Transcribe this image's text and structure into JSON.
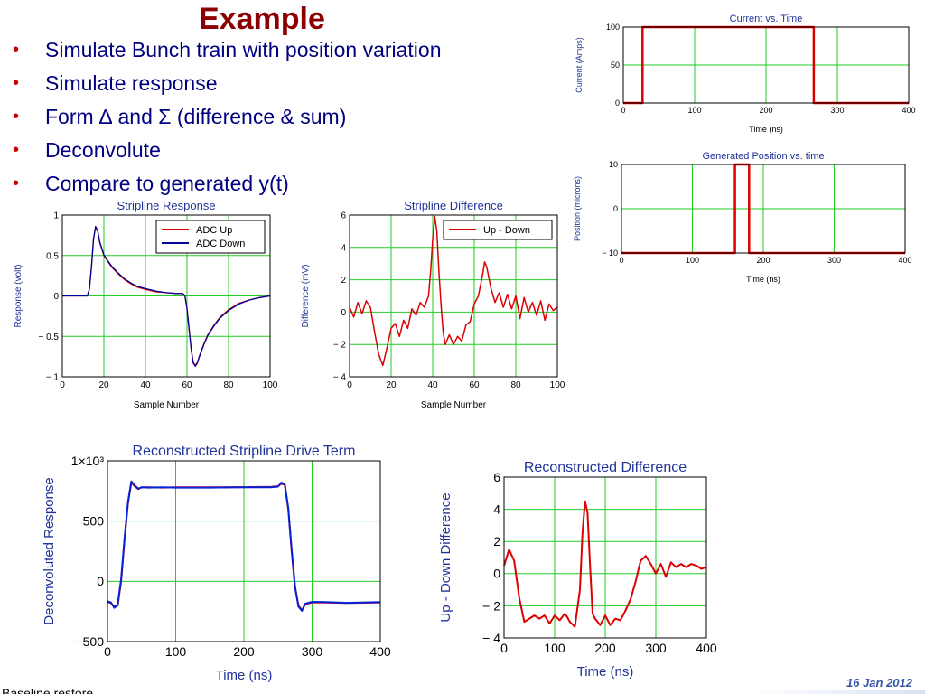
{
  "slide": {
    "title": "Example",
    "bullet_glyph": "•",
    "bullets": [
      "Simulate Bunch train with position variation",
      "Simulate response",
      "Form ∆ and Σ (difference & sum)",
      "Deconvolute",
      "Compare to generated y(t)"
    ],
    "footer_date": "16 Jan 2012",
    "footer_text": "Baseline restore"
  },
  "chart_data": [
    {
      "id": "current",
      "type": "line",
      "title": "Current vs. Time",
      "xlabel": "Time (ns)",
      "ylabel": "Current (Amps)",
      "xlim": [
        0,
        400
      ],
      "ylim": [
        0,
        100
      ],
      "xticks": [
        0,
        100,
        200,
        300,
        400
      ],
      "yticks": [
        0,
        50,
        100
      ],
      "grid": true,
      "series": [
        {
          "color": "#dd0000",
          "x": [
            0,
            27,
            27,
            267,
            267,
            400
          ],
          "y": [
            0,
            0,
            100,
            100,
            0,
            0
          ]
        }
      ]
    },
    {
      "id": "position",
      "type": "line",
      "title": "Generated Position vs. time",
      "xlabel": "Time (ns)",
      "ylabel": "Position (microns)",
      "xlim": [
        0,
        400
      ],
      "ylim": [
        -10,
        10
      ],
      "xticks": [
        0,
        100,
        200,
        300,
        400
      ],
      "yticks": [
        -10,
        0,
        10
      ],
      "ytick_labels": [
        "− 10",
        "0",
        "10"
      ],
      "grid": true,
      "series": [
        {
          "color": "#dd0000",
          "x": [
            0,
            160,
            160,
            180,
            180,
            400
          ],
          "y": [
            -10,
            -10,
            10,
            10,
            -10,
            -10
          ]
        }
      ]
    },
    {
      "id": "stripline-response",
      "type": "line",
      "title": "Stripline Response",
      "xlabel": "Sample Number",
      "ylabel": "Response (volt)",
      "xlim": [
        0,
        100
      ],
      "ylim": [
        -1,
        1
      ],
      "xticks": [
        0,
        20,
        40,
        60,
        80,
        100
      ],
      "yticks": [
        -1,
        -0.5,
        0,
        0.5,
        1
      ],
      "ytick_labels": [
        "− 1",
        "− 0.5",
        "0",
        "0.5",
        "1"
      ],
      "grid": true,
      "legend": "top-right",
      "series": [
        {
          "name": "ADC Up",
          "color": "#dd0000",
          "x": [
            0,
            12,
            13,
            14,
            15,
            16,
            17,
            18,
            20,
            22,
            24,
            27,
            30,
            33,
            36,
            40,
            45,
            50,
            55,
            58,
            59,
            60,
            61,
            62,
            63,
            64,
            65,
            66,
            68,
            70,
            73,
            76,
            80,
            85,
            90,
            95,
            100
          ],
          "y": [
            0,
            0,
            0.08,
            0.35,
            0.7,
            0.85,
            0.8,
            0.66,
            0.5,
            0.42,
            0.35,
            0.27,
            0.2,
            0.15,
            0.11,
            0.08,
            0.05,
            0.04,
            0.03,
            0.03,
            0,
            -0.15,
            -0.4,
            -0.65,
            -0.82,
            -0.86,
            -0.82,
            -0.74,
            -0.6,
            -0.48,
            -0.36,
            -0.26,
            -0.17,
            -0.09,
            -0.05,
            -0.02,
            0
          ]
        },
        {
          "name": "ADC Down",
          "color": "#000099",
          "x": [
            0,
            12,
            13,
            14,
            15,
            16,
            17,
            18,
            20,
            22,
            24,
            27,
            30,
            33,
            36,
            40,
            45,
            50,
            55,
            58,
            59,
            60,
            61,
            62,
            63,
            64,
            65,
            66,
            68,
            70,
            73,
            76,
            80,
            85,
            90,
            95,
            100
          ],
          "y": [
            0,
            0,
            0.08,
            0.35,
            0.7,
            0.86,
            0.81,
            0.67,
            0.51,
            0.43,
            0.36,
            0.28,
            0.21,
            0.16,
            0.12,
            0.09,
            0.06,
            0.04,
            0.03,
            0.03,
            0,
            -0.16,
            -0.41,
            -0.66,
            -0.83,
            -0.87,
            -0.83,
            -0.75,
            -0.61,
            -0.49,
            -0.37,
            -0.27,
            -0.18,
            -0.1,
            -0.05,
            -0.02,
            0
          ]
        }
      ]
    },
    {
      "id": "stripline-difference",
      "type": "line",
      "title": "Stripline  Difference",
      "xlabel": "Sample Number",
      "ylabel": "Difference (mV)",
      "xlim": [
        0,
        100
      ],
      "ylim": [
        -4,
        6
      ],
      "xticks": [
        0,
        20,
        40,
        60,
        80,
        100
      ],
      "yticks": [
        -4,
        -2,
        0,
        2,
        4,
        6
      ],
      "ytick_labels": [
        "− 4",
        "− 2",
        "0",
        "2",
        "4",
        "6"
      ],
      "grid": true,
      "legend": "top-right",
      "series": [
        {
          "name": "Up - Down",
          "color": "#dd0000",
          "x": [
            0,
            2,
            4,
            6,
            8,
            10,
            12,
            14,
            16,
            18,
            20,
            22,
            24,
            26,
            28,
            30,
            32,
            34,
            36,
            38,
            39,
            40,
            41,
            42,
            43,
            44,
            45,
            46,
            48,
            50,
            52,
            54,
            56,
            58,
            60,
            62,
            64,
            65,
            66,
            68,
            70,
            72,
            74,
            76,
            78,
            80,
            82,
            84,
            86,
            88,
            90,
            92,
            94,
            96,
            98,
            100
          ],
          "y": [
            0.3,
            -0.3,
            0.6,
            -0.1,
            0.7,
            0.3,
            -1.2,
            -2.6,
            -3.3,
            -2.2,
            -1.0,
            -0.7,
            -1.5,
            -0.5,
            -1.0,
            0.2,
            -0.2,
            0.6,
            0.3,
            1.0,
            2.5,
            4.5,
            5.9,
            5.0,
            2.5,
            0.5,
            -1.2,
            -2.0,
            -1.4,
            -2.0,
            -1.5,
            -1.8,
            -0.8,
            -0.6,
            0.5,
            1.0,
            2.3,
            3.1,
            2.8,
            1.5,
            0.6,
            1.2,
            0.3,
            1.1,
            0.2,
            1.0,
            -0.4,
            0.9,
            0.0,
            0.6,
            -0.2,
            0.7,
            -0.5,
            0.5,
            0.1,
            0.3
          ]
        }
      ]
    },
    {
      "id": "reconstructed-drive",
      "type": "line",
      "title": "Reconstructed Stripline Drive Term",
      "xlabel": "Time (ns)",
      "ylabel": "Deconvoluted Response",
      "xlim": [
        0,
        400
      ],
      "ylim": [
        -500,
        1000
      ],
      "xticks": [
        0,
        100,
        200,
        300,
        400
      ],
      "yticks": [
        -500,
        0,
        500,
        1000
      ],
      "ytick_labels": [
        "− 500",
        "0",
        "500",
        "1×10³"
      ],
      "grid": true,
      "series": [
        {
          "color": "#dd0000",
          "x": [
            0,
            5,
            10,
            15,
            20,
            25,
            30,
            35,
            40,
            45,
            50,
            60,
            80,
            100,
            150,
            200,
            240,
            250,
            255,
            260,
            265,
            270,
            275,
            280,
            285,
            290,
            300,
            320,
            350,
            400
          ],
          "y": [
            -170,
            -180,
            -210,
            -200,
            0,
            350,
            650,
            820,
            790,
            765,
            780,
            780,
            778,
            780,
            780,
            782,
            785,
            790,
            810,
            800,
            600,
            250,
            -50,
            -200,
            -240,
            -190,
            -175,
            -175,
            -180,
            -175
          ]
        },
        {
          "color": "#0022dd",
          "x": [
            0,
            5,
            10,
            15,
            20,
            25,
            30,
            35,
            40,
            45,
            50,
            60,
            80,
            100,
            150,
            200,
            240,
            250,
            255,
            260,
            265,
            270,
            275,
            280,
            285,
            290,
            300,
            320,
            350,
            400
          ],
          "y": [
            -165,
            -175,
            -220,
            -195,
            20,
            360,
            660,
            830,
            795,
            770,
            780,
            778,
            780,
            778,
            778,
            780,
            780,
            786,
            820,
            805,
            610,
            260,
            -40,
            -210,
            -245,
            -185,
            -170,
            -172,
            -178,
            -172
          ]
        }
      ]
    },
    {
      "id": "reconstructed-difference",
      "type": "line",
      "title": "Reconstructed Difference",
      "xlabel": "Time (ns)",
      "ylabel": "Up - Down Difference",
      "xlim": [
        0,
        400
      ],
      "ylim": [
        -4,
        6
      ],
      "xticks": [
        0,
        100,
        200,
        300,
        400
      ],
      "yticks": [
        -4,
        -2,
        0,
        2,
        4,
        6
      ],
      "ytick_labels": [
        "− 4",
        "− 2",
        "0",
        "2",
        "4",
        "6"
      ],
      "grid": true,
      "series": [
        {
          "color": "#dd0000",
          "x": [
            0,
            10,
            20,
            30,
            40,
            50,
            60,
            70,
            80,
            90,
            100,
            110,
            120,
            125,
            130,
            140,
            150,
            155,
            160,
            165,
            170,
            175,
            180,
            190,
            200,
            210,
            220,
            230,
            240,
            250,
            260,
            270,
            280,
            290,
            300,
            310,
            320,
            330,
            340,
            350,
            360,
            370,
            380,
            390,
            400
          ],
          "y": [
            0.5,
            1.5,
            0.8,
            -1.5,
            -3.0,
            -2.8,
            -2.6,
            -2.8,
            -2.6,
            -3.1,
            -2.6,
            -2.9,
            -2.5,
            -2.7,
            -3.0,
            -3.3,
            -1.0,
            2.5,
            4.5,
            3.8,
            0.5,
            -2.5,
            -2.8,
            -3.2,
            -2.6,
            -3.2,
            -2.8,
            -2.9,
            -2.3,
            -1.6,
            -0.5,
            0.8,
            1.1,
            0.6,
            0.0,
            0.6,
            -0.2,
            0.7,
            0.4,
            0.6,
            0.4,
            0.6,
            0.5,
            0.3,
            0.4
          ]
        }
      ]
    }
  ]
}
